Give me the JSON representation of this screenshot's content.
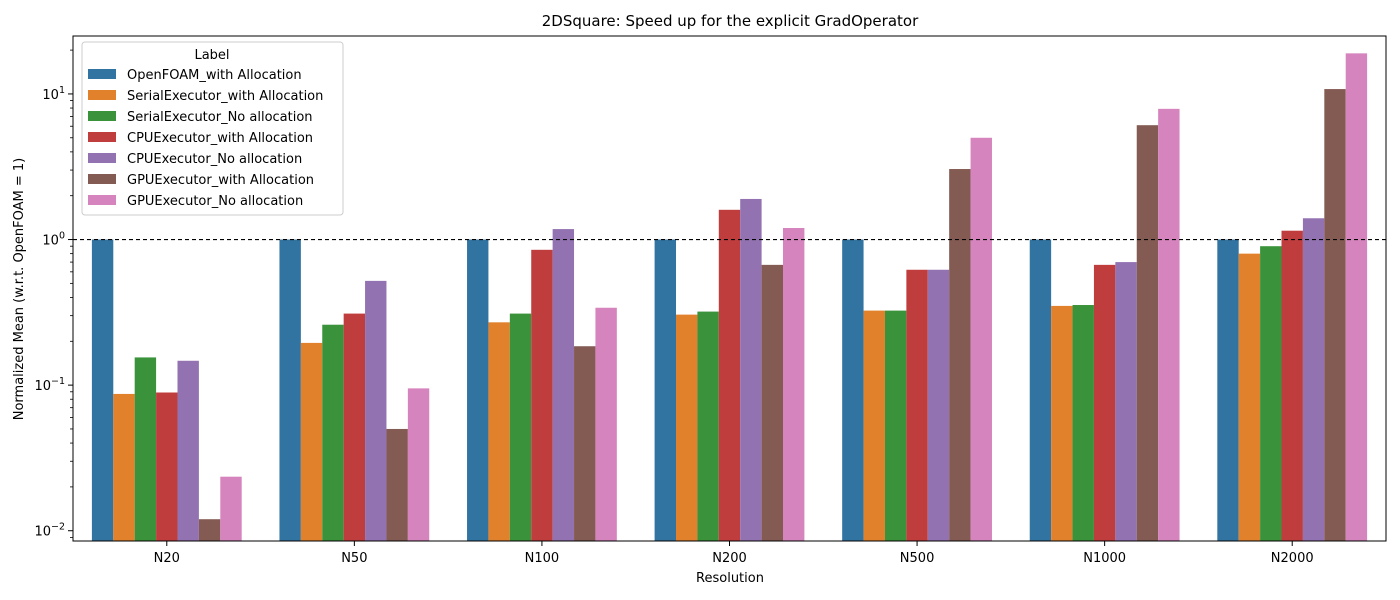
{
  "chart_data": {
    "type": "bar",
    "title": "2DSquare: Speed up for the explicit GradOperator",
    "xlabel": "Resolution",
    "ylabel": "Normalized Mean (w.r.t. OpenFOAM = 1)",
    "yscale": "log",
    "ylim": [
      0.0085,
      25
    ],
    "yticks": [
      {
        "value": 0.01,
        "base": "10",
        "exp": "−2"
      },
      {
        "value": 0.1,
        "base": "10",
        "exp": "−1"
      },
      {
        "value": 1,
        "base": "10",
        "exp": "0"
      },
      {
        "value": 10,
        "base": "10",
        "exp": "1"
      }
    ],
    "reference_line": {
      "value": 1,
      "style": "dashed"
    },
    "legend": {
      "title": "Label",
      "placement": "top-left"
    },
    "categories": [
      "N20",
      "N50",
      "N100",
      "N200",
      "N500",
      "N1000",
      "N2000"
    ],
    "series": [
      {
        "name": "OpenFOAM_with Allocation",
        "color": "#3274a1",
        "values": [
          1,
          1,
          1,
          1,
          1,
          1,
          1
        ]
      },
      {
        "name": "SerialExecutor_with Allocation",
        "color": "#e1812c",
        "values": [
          0.087,
          0.195,
          0.27,
          0.305,
          0.325,
          0.35,
          0.8
        ]
      },
      {
        "name": "SerialExecutor_No allocation",
        "color": "#3a923a",
        "values": [
          0.155,
          0.26,
          0.31,
          0.32,
          0.325,
          0.355,
          0.9
        ]
      },
      {
        "name": "CPUExecutor_with Allocation",
        "color": "#c03d3e",
        "values": [
          0.089,
          0.31,
          0.85,
          1.6,
          0.62,
          0.67,
          1.15
        ]
      },
      {
        "name": "CPUExecutor_No allocation",
        "color": "#9372b2",
        "values": [
          0.147,
          0.52,
          1.18,
          1.9,
          0.62,
          0.7,
          1.4
        ]
      },
      {
        "name": "GPUExecutor_with Allocation",
        "color": "#845b53",
        "values": [
          0.012,
          0.05,
          0.185,
          0.67,
          3.05,
          6.1,
          10.8
        ]
      },
      {
        "name": "GPUExecutor_No allocation",
        "color": "#d684bd",
        "values": [
          0.0235,
          0.095,
          0.34,
          1.2,
          5.0,
          7.9,
          19.0
        ]
      }
    ]
  }
}
